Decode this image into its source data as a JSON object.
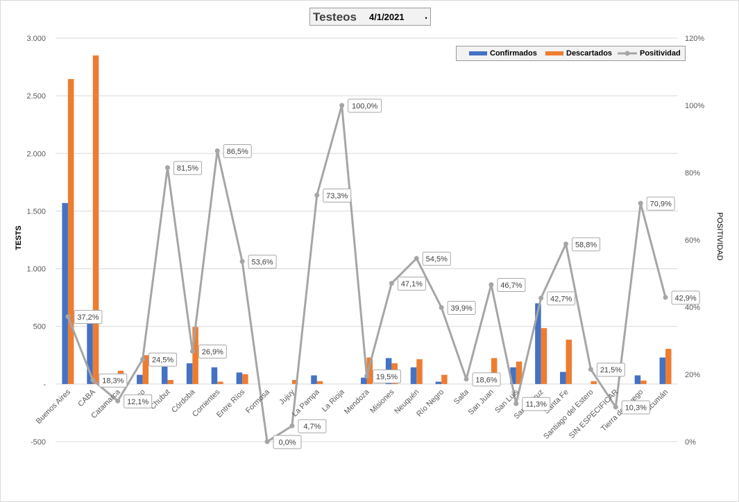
{
  "header": {
    "title": "Testeos",
    "date": "4/1/2021",
    "dot": "."
  },
  "colors": {
    "confirmados": "#4472C4",
    "descartados": "#ED7D31",
    "positividad": "#A5A5A5",
    "grid": "#D9D9D9"
  },
  "chart_data": {
    "type": "bar+line",
    "categories": [
      "Buenos Aires",
      "CABA",
      "Catamarca",
      "Chaco",
      "Chubut",
      "Córdoba",
      "Corrientes",
      "Entre Ríos",
      "Formosa",
      "Jujuy",
      "La Pampa",
      "La Rioja",
      "Mendoza",
      "Misiones",
      "Neuquén",
      "Río Negro",
      "Salta",
      "San Juan",
      "San Luis",
      "Santa Cruz",
      "Santa Fe",
      "Santiago del Estero",
      "SIN ESPECIFICAR",
      "Tierra del Fuego",
      "Tucumán"
    ],
    "series": [
      {
        "name": "Confirmados",
        "axis": "left",
        "values": [
          1570,
          540,
          5,
          80,
          150,
          180,
          145,
          100,
          0,
          0,
          75,
          0,
          55,
          225,
          145,
          20,
          0,
          30,
          145,
          700,
          105,
          0,
          0,
          75,
          230
        ]
      },
      {
        "name": "Descartados",
        "axis": "left",
        "values": [
          2645,
          2850,
          115,
          250,
          35,
          495,
          20,
          85,
          0,
          35,
          25,
          0,
          230,
          180,
          215,
          80,
          0,
          225,
          195,
          485,
          385,
          25,
          0,
          30,
          305
        ]
      },
      {
        "name": "Positividad",
        "axis": "right",
        "type": "line",
        "values": [
          37.2,
          18.3,
          12.1,
          24.5,
          81.5,
          26.9,
          86.5,
          53.6,
          0.0,
          4.7,
          73.3,
          100.0,
          19.5,
          47.1,
          54.5,
          39.9,
          18.6,
          46.7,
          11.3,
          42.7,
          58.8,
          21.5,
          10.3,
          70.9,
          42.9
        ],
        "labels": [
          "37,2%",
          "18,3%",
          "12,1%",
          "24,5%",
          "81,5%",
          "26,9%",
          "86,5%",
          "53,6%",
          "0,0%",
          "4,7%",
          "73,3%",
          "100,0%",
          "19,5%",
          "47,1%",
          "54,5%",
          "39,9%",
          "18,6%",
          "46,7%",
          "11,3%",
          "42,7%",
          "58,8%",
          "21,5%",
          "10,3%",
          "70,9%",
          "42,9%"
        ]
      }
    ],
    "left_axis": {
      "title": "TESTS",
      "ylim": [
        -500,
        3000
      ],
      "ticks": [
        -500,
        0,
        500,
        1000,
        1500,
        2000,
        2500,
        3000
      ],
      "tick_labels": [
        "-500",
        "-",
        "500",
        "1.000",
        "1.500",
        "2.000",
        "2.500",
        "3.000"
      ]
    },
    "right_axis": {
      "title": "POSITIVIDAD",
      "ylim": [
        0,
        120
      ],
      "ticks": [
        0,
        20,
        40,
        60,
        80,
        100,
        120
      ],
      "tick_labels": [
        "0%",
        "20%",
        "40%",
        "60%",
        "80%",
        "100%",
        "120%"
      ]
    },
    "grid": true,
    "legend": {
      "position": "top-right",
      "items": [
        "Confirmados",
        "Descartados",
        "Positividad"
      ]
    }
  }
}
